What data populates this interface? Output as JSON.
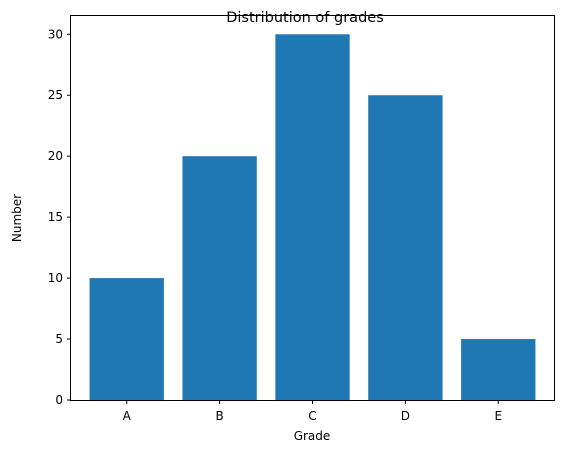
{
  "chart_data": {
    "type": "bar",
    "title": "Distribution of grades",
    "xlabel": "Grade",
    "ylabel": "Number",
    "categories": [
      "A",
      "B",
      "C",
      "D",
      "E"
    ],
    "values": [
      10,
      20,
      30,
      25,
      5
    ],
    "ylim": [
      0,
      31.5
    ],
    "yticks": [
      0,
      5,
      10,
      15,
      20,
      25,
      30
    ],
    "ytick_labels": [
      "0",
      "5",
      "10",
      "15",
      "20",
      "25",
      "30"
    ],
    "bar_color": "#1f77b4",
    "grid": false,
    "legend": "none"
  }
}
